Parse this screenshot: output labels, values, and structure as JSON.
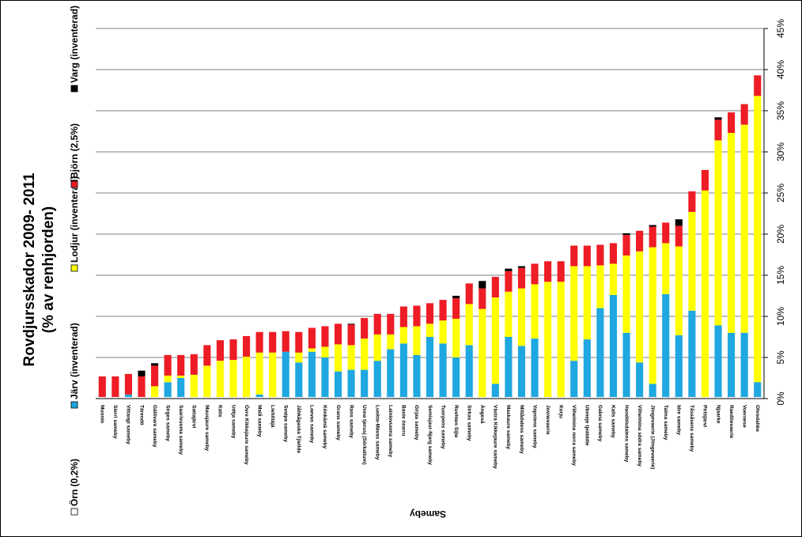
{
  "chart_data": {
    "type": "bar",
    "stacked": true,
    "title_line1": "Rovdjursskador 2009- 2011",
    "title_line2": "(% av renhjorden)",
    "xlabel": "Sameby",
    "ylabel": "",
    "ylim": [
      0,
      45
    ],
    "y_ticks": [
      "0%",
      "5%",
      "10%",
      "15%",
      "20%",
      "25%",
      "30%",
      "35%",
      "40%",
      "45%"
    ],
    "grid": true,
    "legend_position": "left-vertical",
    "categories": [
      "Muonio",
      "Sierri sameby",
      "Vittangi sameby",
      "Tärendö",
      "Gällivare sameby",
      "Sirges sameby",
      "Saarivuoma sameby",
      "Sattajärvi",
      "Mausjaure sameby",
      "Kalix",
      "Udtja sameby",
      "Övre Kikkejaure sameby",
      "Malå sameby",
      "Liehittäjä",
      "Svaipa sameby",
      "Jåhkågaska Tjiellde",
      "Laevas sameby",
      "Könkämä sameby",
      "Grans sameby",
      "Rans sameby",
      "Unna tjerusj (Sörkaitum)",
      "Luokta-Mávas sameby",
      "Lainiovuoma sameby",
      "Baste čearru",
      "Girjas sameby",
      "Semisjaur-Njarg sameby",
      "Tuorpons sameby",
      "Ruvhten Sijte",
      "Sirkas sameby",
      "Ängeså",
      "Västra Kikkejaure sameby",
      "Maskaure sameby",
      "Mittådalens sameby",
      "Vapstens sameby",
      "Jovnevaerie",
      "Korju",
      "Vilhelmina norra sameby",
      "Ubmeje tjeälddie",
      "Gabna sameby",
      "Kalls sameby",
      "Handölsdalens sameby",
      "Vilhelmina södra sameby",
      "Jiingevaerie (Jiingevaerie)",
      "Talma sameby",
      "Idre sameby",
      "Tåssåsens sameby",
      "Pirttijärvi",
      "Njaarke",
      "Raedtievaerie",
      "Voernese",
      "Ohredahke"
    ],
    "series": [
      {
        "name": "Örn (0,2%)",
        "color": "#ffffff",
        "values": [
          0.2,
          0.2,
          0.2,
          0.2,
          0.2,
          0.2,
          0.2,
          0.2,
          0.2,
          0.2,
          0.2,
          0.2,
          0.2,
          0.2,
          0.2,
          0.2,
          0.2,
          0.2,
          0.2,
          0.2,
          0.2,
          0.2,
          0.2,
          0.2,
          0.2,
          0.2,
          0.2,
          0.2,
          0.2,
          0.2,
          0.2,
          0.2,
          0.2,
          0.2,
          0.2,
          0.2,
          0.2,
          0.2,
          0.2,
          0.2,
          0.2,
          0.2,
          0.2,
          0.2,
          0.2,
          0.2,
          0.2,
          0.2,
          0.2,
          0.2,
          0.2
        ]
      },
      {
        "name": "Järv (inventerad)",
        "color": "#1ea7e0",
        "values": [
          0,
          0,
          0.3,
          0,
          0,
          1.8,
          2.3,
          0,
          0,
          0,
          0,
          0,
          0.3,
          0,
          5.5,
          4.2,
          5.5,
          4.8,
          3.1,
          3.3,
          3.3,
          4.4,
          5.8,
          6.5,
          5.1,
          7.3,
          6.5,
          4.8,
          6.3,
          0,
          1.6,
          7.3,
          6.2,
          7.1,
          0,
          0,
          4.4,
          7.0,
          10.8,
          12.4,
          7.8,
          4.2,
          1.6,
          12.5,
          7.5,
          10.5,
          0,
          8.7,
          7.8,
          7.8,
          1.8
        ]
      },
      {
        "name": "Lodjur (inventerad)",
        "color": "#ffff00",
        "values": [
          0,
          0,
          0,
          0,
          1.3,
          0.8,
          0.3,
          2.7,
          3.8,
          4.4,
          4.5,
          4.9,
          5.1,
          5.4,
          0,
          1.2,
          0.4,
          1.3,
          3.3,
          3.0,
          3.8,
          3.2,
          1.8,
          2.0,
          3.5,
          1.6,
          2.8,
          4.7,
          5.0,
          10.7,
          10.5,
          5.5,
          7.0,
          6.6,
          14.0,
          14.0,
          11.5,
          8.9,
          5.2,
          3.8,
          9.4,
          13.5,
          16.6,
          6.2,
          10.8,
          12.0,
          25.1,
          22.5,
          24.3,
          25.3,
          34.8
        ]
      },
      {
        "name": "Björn (2,5%)",
        "color": "#ee1c25",
        "values": [
          2.5,
          2.5,
          2.5,
          2.5,
          2.5,
          2.5,
          2.5,
          2.5,
          2.5,
          2.5,
          2.5,
          2.5,
          2.5,
          2.5,
          2.5,
          2.5,
          2.5,
          2.5,
          2.5,
          2.5,
          2.5,
          2.5,
          2.5,
          2.5,
          2.5,
          2.5,
          2.5,
          2.5,
          2.5,
          2.5,
          2.5,
          2.5,
          2.5,
          2.5,
          2.5,
          2.5,
          2.5,
          2.5,
          2.5,
          2.5,
          2.5,
          2.5,
          2.5,
          2.5,
          2.5,
          2.5,
          2.5,
          2.5,
          2.5,
          2.5,
          2.5
        ]
      },
      {
        "name": "Varg (inventerad)",
        "color": "#000000",
        "values": [
          0,
          0,
          0,
          0.7,
          0.3,
          0,
          0,
          0,
          0,
          0,
          0,
          0,
          0,
          0,
          0,
          0,
          0,
          0,
          0,
          0.1,
          0,
          0,
          0,
          0,
          0,
          0,
          0,
          0.3,
          0,
          0.9,
          0,
          0.3,
          0.2,
          0,
          0,
          0,
          0,
          0,
          0,
          0,
          0.2,
          0,
          0.2,
          0,
          0.8,
          0,
          0,
          0.3,
          0,
          0,
          0
        ]
      }
    ]
  }
}
